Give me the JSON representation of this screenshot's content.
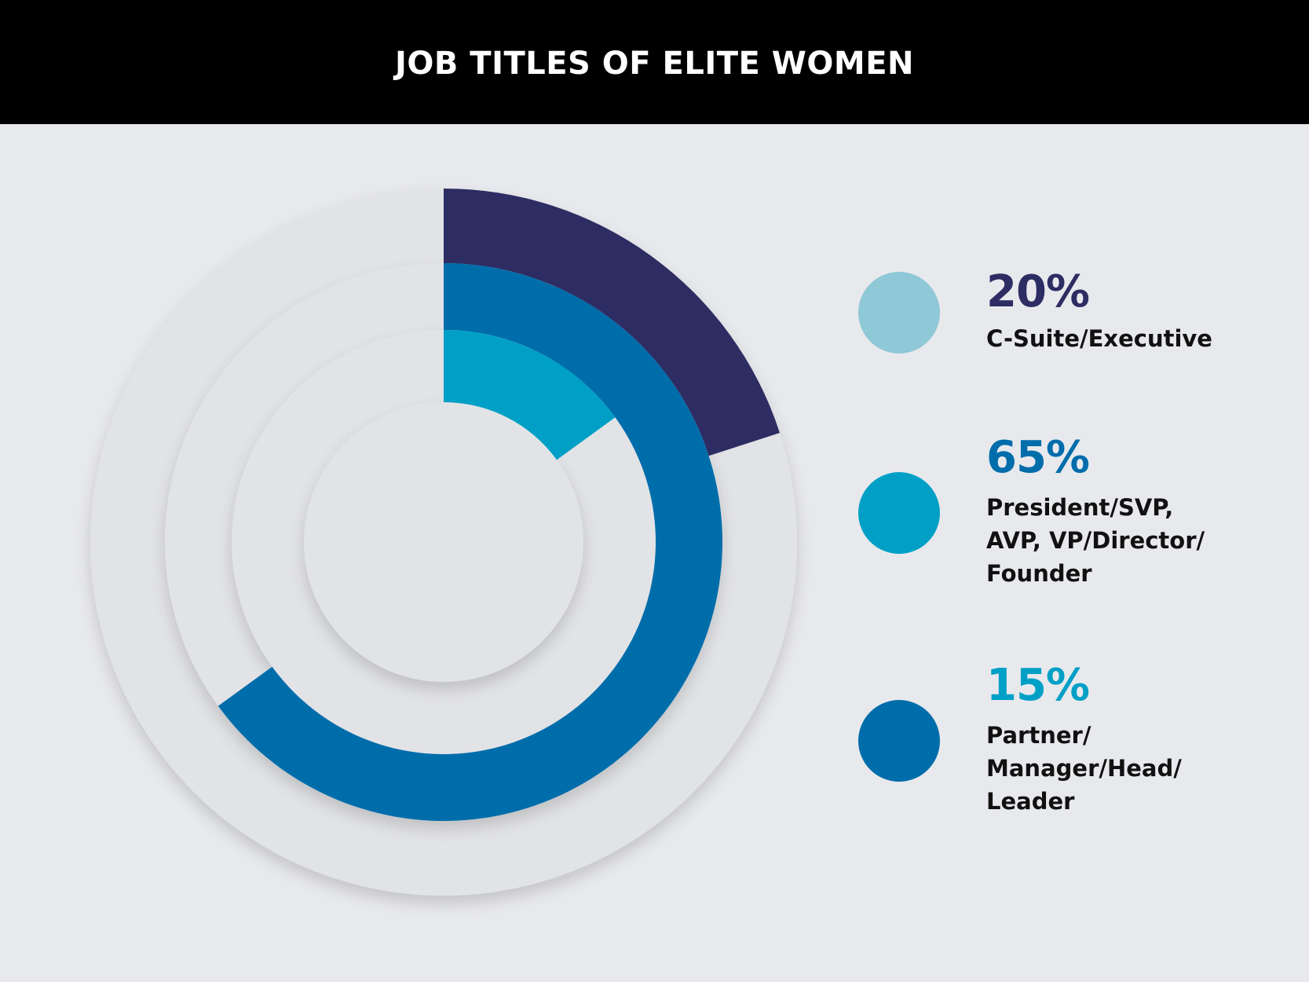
{
  "chart_data": {
    "type": "donut",
    "title": "JOB TITLES OF ELITE WOMEN",
    "series": [
      {
        "value": 20,
        "value_label": "20%",
        "label_lines": [
          "C-Suite/Executive"
        ],
        "color": "#2d2d63",
        "swatch_color": "#8fc8d6",
        "value_color": "#2d2d63"
      },
      {
        "value": 65,
        "value_label": "65%",
        "label_lines": [
          "President/SVP,",
          "AVP, VP/Director/",
          "Founder"
        ],
        "color": "#006dab",
        "swatch_color": "#00a0c6",
        "value_color": "#006dab"
      },
      {
        "value": 15,
        "value_label": "15%",
        "label_lines": [
          "Partner/",
          "Manager/Head/",
          "Leader"
        ],
        "color": "#00a0c6",
        "swatch_color": "#006dab",
        "value_color": "#00a0c6"
      }
    ],
    "track_color": "#e2e3e6",
    "background_color": "#e8e9ed"
  }
}
